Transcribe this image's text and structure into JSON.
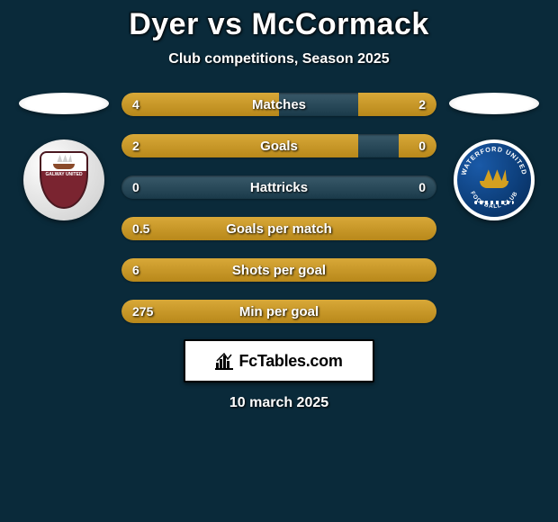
{
  "title": "Dyer vs McCormack",
  "subtitle": "Club competitions, Season 2025",
  "date_text": "10 march 2025",
  "branding_text": "FcTables.com",
  "colors": {
    "background": "#0a2a3a",
    "bar_track_top": "#3a5a6a",
    "bar_track_bottom": "#1a3a4a",
    "bar_fill_top": "#d8a838",
    "bar_fill_bottom": "#b8881a",
    "text": "#ffffff"
  },
  "player_left": {
    "crest_label": "GALWAY UNITED",
    "crest_bg": "#e8e8e8",
    "crest_shield": "#7a2430"
  },
  "player_right": {
    "crest_top": "WATERFORD UNITED",
    "crest_bottom": "FOOTBALL CLUB",
    "crest_bg": "#0c3d78",
    "crest_accent": "#d4a020"
  },
  "stats": [
    {
      "label": "Matches",
      "left_val": "4",
      "right_val": "2",
      "left_pct": 50,
      "right_pct": 25
    },
    {
      "label": "Goals",
      "left_val": "2",
      "right_val": "0",
      "left_pct": 75,
      "right_pct": 12
    },
    {
      "label": "Hattricks",
      "left_val": "0",
      "right_val": "0",
      "left_pct": 0,
      "right_pct": 0
    },
    {
      "label": "Goals per match",
      "left_val": "0.5",
      "right_val": "",
      "left_pct": 100,
      "right_pct": 0
    },
    {
      "label": "Shots per goal",
      "left_val": "6",
      "right_val": "",
      "left_pct": 100,
      "right_pct": 0
    },
    {
      "label": "Min per goal",
      "left_val": "275",
      "right_val": "",
      "left_pct": 100,
      "right_pct": 0
    }
  ]
}
